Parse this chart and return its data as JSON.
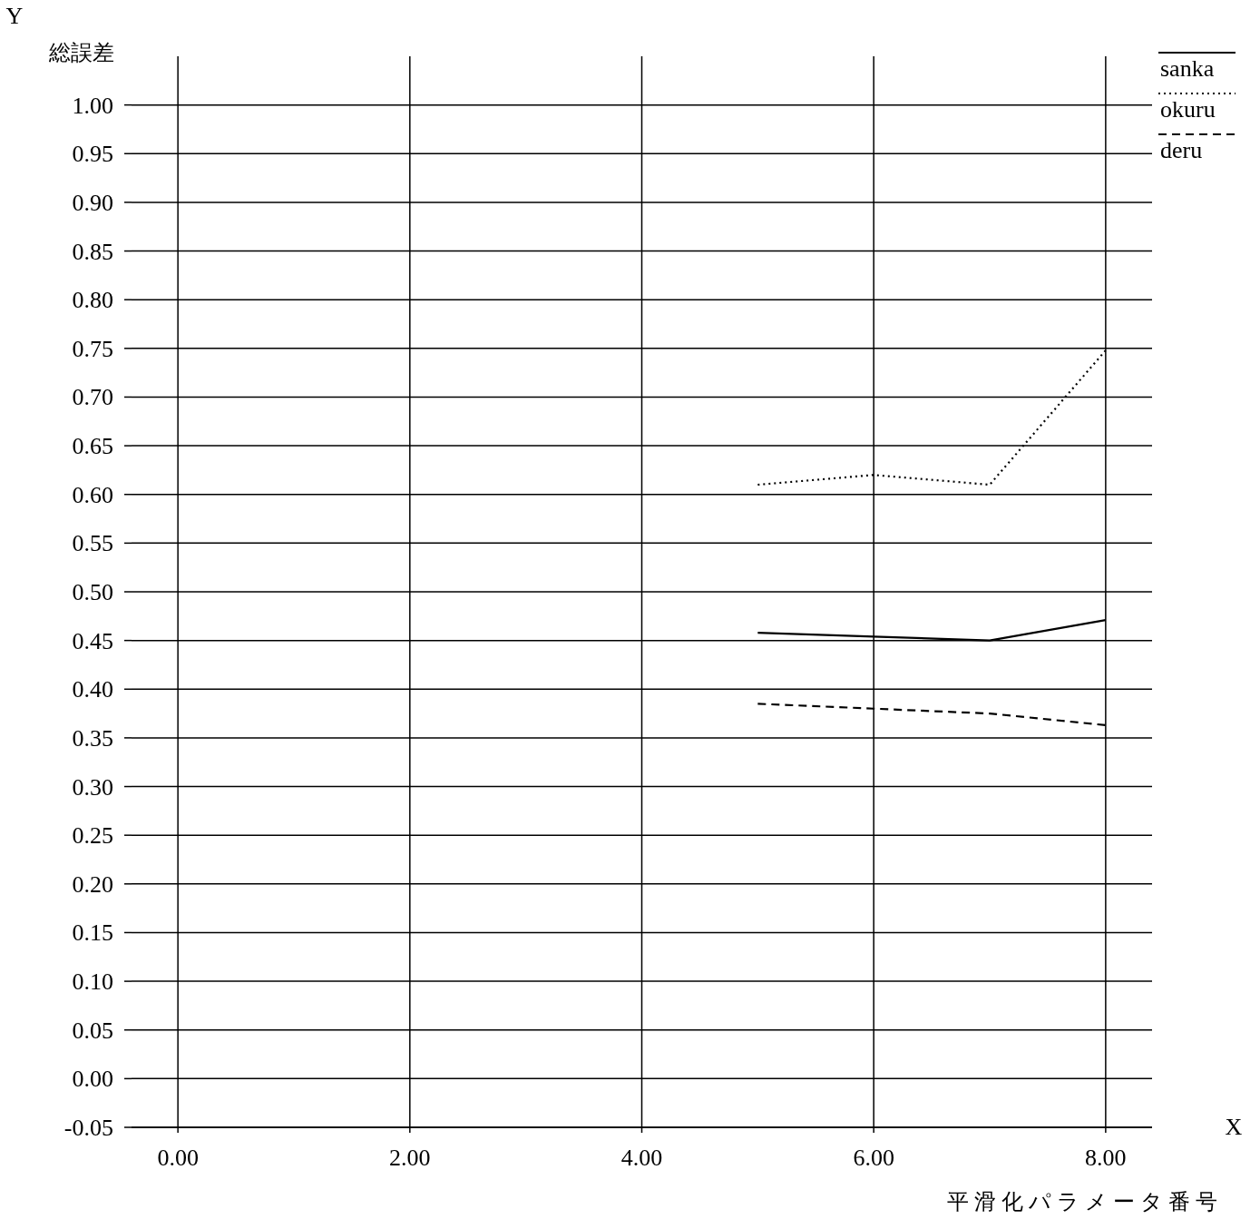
{
  "chart_data": {
    "type": "line",
    "xlabel": "平滑化パラメータ番号",
    "ylabel": "総誤差",
    "annotations": [
      "Y",
      "X"
    ],
    "x": [
      5,
      6,
      7,
      8
    ],
    "series": [
      {
        "name": "sanka",
        "color": "#000000",
        "line_style": "solid",
        "values": [
          0.458,
          0.454,
          0.45,
          0.471
        ]
      },
      {
        "name": "okuru",
        "color": "#000000",
        "line_style": "dotted",
        "values": [
          0.61,
          0.62,
          0.61,
          0.748
        ]
      },
      {
        "name": "deru",
        "color": "#000000",
        "line_style": "dashed",
        "values": [
          0.385,
          0.38,
          0.375,
          0.363
        ]
      }
    ],
    "xlim": [
      -0.4,
      8.4
    ],
    "ylim": [
      -0.05,
      1.05
    ],
    "xticks": [
      {
        "value": 0,
        "label": "0.00"
      },
      {
        "value": 2,
        "label": "2.00"
      },
      {
        "value": 4,
        "label": "4.00"
      },
      {
        "value": 6,
        "label": "6.00"
      },
      {
        "value": 8,
        "label": "8.00"
      }
    ],
    "yticks": [
      {
        "value": -0.05,
        "label": "-0.05"
      },
      {
        "value": 0,
        "label": "0.00"
      },
      {
        "value": 0.05,
        "label": "0.05"
      },
      {
        "value": 0.1,
        "label": "0.10"
      },
      {
        "value": 0.15,
        "label": "0.15"
      },
      {
        "value": 0.2,
        "label": "0.20"
      },
      {
        "value": 0.25,
        "label": "0.25"
      },
      {
        "value": 0.3,
        "label": "0.30"
      },
      {
        "value": 0.35,
        "label": "0.35"
      },
      {
        "value": 0.4,
        "label": "0.40"
      },
      {
        "value": 0.45,
        "label": "0.45"
      },
      {
        "value": 0.5,
        "label": "0.50"
      },
      {
        "value": 0.55,
        "label": "0.55"
      },
      {
        "value": 0.6,
        "label": "0.60"
      },
      {
        "value": 0.65,
        "label": "0.65"
      },
      {
        "value": 0.7,
        "label": "0.70"
      },
      {
        "value": 0.75,
        "label": "0.75"
      },
      {
        "value": 0.8,
        "label": "0.80"
      },
      {
        "value": 0.85,
        "label": "0.85"
      },
      {
        "value": 0.9,
        "label": "0.90"
      },
      {
        "value": 0.95,
        "label": "0.95"
      },
      {
        "value": 1.0,
        "label": "1.00"
      }
    ],
    "grid": true,
    "legend": "top right"
  }
}
